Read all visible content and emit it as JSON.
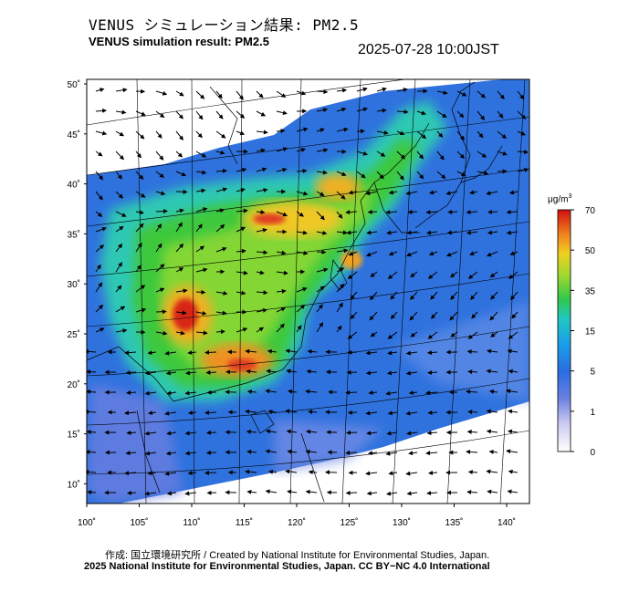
{
  "header": {
    "title_jp": "VENUS シミュレーション結果: PM2.5",
    "title_en": "VENUS simulation result: PM2.5",
    "timestamp": "2025-07-28 10:00JST"
  },
  "map": {
    "lat_labels": [
      "50˚",
      "45˚",
      "40˚",
      "35˚",
      "30˚",
      "25˚",
      "20˚",
      "15˚",
      "10˚"
    ],
    "lon_labels": [
      "100˚",
      "105˚",
      "110˚",
      "115˚",
      "120˚",
      "125˚",
      "130˚",
      "135˚",
      "140˚"
    ],
    "colors": {
      "ocean_low": "#2f7fe0",
      "land_mid": "#3ccf3c",
      "high": "#e03020"
    }
  },
  "colorbar": {
    "unit_base": "μg/m",
    "unit_sup": "3",
    "ticks": [
      "70",
      "50",
      "35",
      "15",
      "5",
      "1",
      "0"
    ]
  },
  "footer": {
    "credit": "作成: 国立環境研究所 / Created by National Institute for Environmental Studies, Japan.",
    "copyright": "2025 National Institute for Environmental Studies, Japan. CC BY−NC 4.0 International"
  }
}
